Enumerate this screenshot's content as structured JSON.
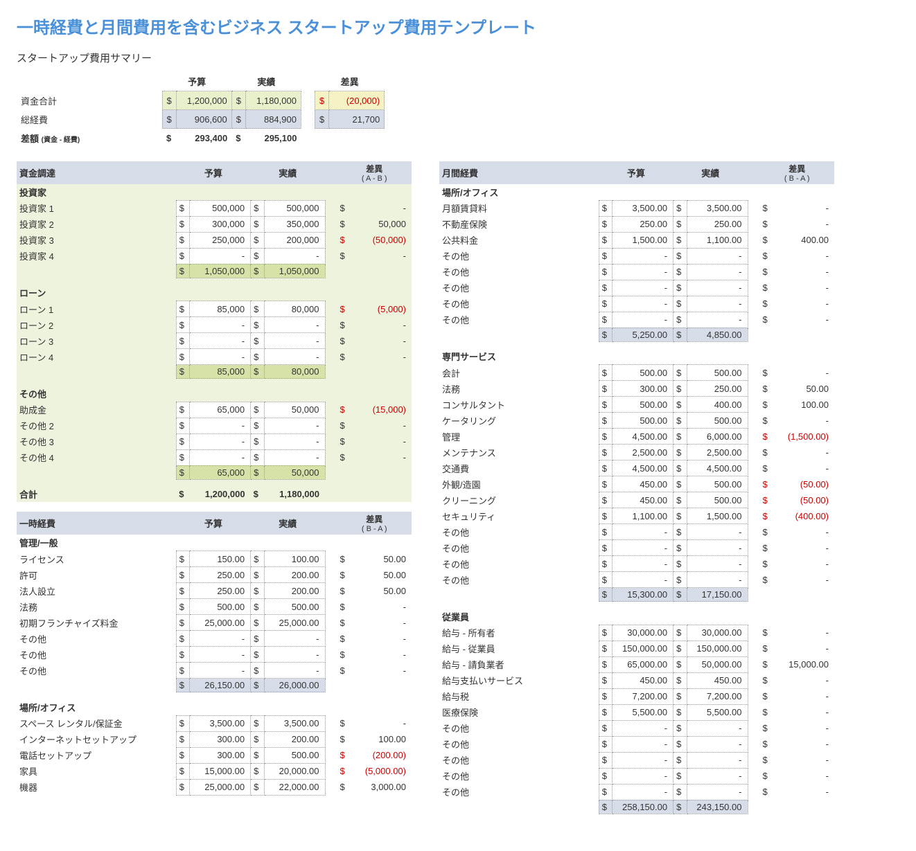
{
  "title": "一時経費と月間費用を含むビジネス スタートアップ費用テンプレート",
  "summary": {
    "title": "スタートアップ費用サマリー",
    "headers": {
      "budget": "予算",
      "actual": "実績",
      "diff": "差異"
    },
    "currency": "$",
    "rows": [
      {
        "label": "資金合計",
        "budget": "1,200,000",
        "actual": "1,180,000",
        "diff": "(20,000)",
        "neg": true,
        "style": "green"
      },
      {
        "label": "総経費",
        "budget": "906,600",
        "actual": "884,900",
        "diff": "21,700",
        "neg": false,
        "style": "blue"
      },
      {
        "label": "差額",
        "note": "(資金 - 経費)",
        "budget": "293,400",
        "actual": "295,100",
        "diff": "",
        "bold": true,
        "style": "none"
      }
    ]
  },
  "funding": {
    "title": "資金調達",
    "headers": {
      "budget": "予算",
      "actual": "実績",
      "diff": "差異",
      "diffsub": "( A - B )"
    },
    "currency": "$",
    "groups": [
      {
        "name": "投資家",
        "rows": [
          {
            "label": "投資家 1",
            "b": "500,000",
            "a": "500,000",
            "d": "-"
          },
          {
            "label": "投資家 2",
            "b": "300,000",
            "a": "350,000",
            "d": "50,000"
          },
          {
            "label": "投資家 3",
            "b": "250,000",
            "a": "200,000",
            "d": "(50,000)",
            "neg": true
          },
          {
            "label": "投資家 4",
            "b": "-",
            "a": "-",
            "d": "-"
          }
        ],
        "subtotal": {
          "b": "1,050,000",
          "a": "1,050,000"
        }
      },
      {
        "name": "ローン",
        "rows": [
          {
            "label": "ローン 1",
            "b": "85,000",
            "a": "80,000",
            "d": "(5,000)",
            "neg": true
          },
          {
            "label": "ローン 2",
            "b": "-",
            "a": "-",
            "d": "-"
          },
          {
            "label": "ローン 3",
            "b": "-",
            "a": "-",
            "d": "-"
          },
          {
            "label": "ローン 4",
            "b": "-",
            "a": "-",
            "d": "-"
          }
        ],
        "subtotal": {
          "b": "85,000",
          "a": "80,000"
        }
      },
      {
        "name": "その他",
        "rows": [
          {
            "label": "助成金",
            "b": "65,000",
            "a": "50,000",
            "d": "(15,000)",
            "neg": true
          },
          {
            "label": "その他 2",
            "b": "-",
            "a": "-",
            "d": "-"
          },
          {
            "label": "その他 3",
            "b": "-",
            "a": "-",
            "d": "-"
          },
          {
            "label": "その他 4",
            "b": "-",
            "a": "-",
            "d": "-"
          }
        ],
        "subtotal": {
          "b": "65,000",
          "a": "50,000"
        }
      }
    ],
    "total": {
      "label": "合計",
      "b": "1,200,000",
      "a": "1,180,000"
    }
  },
  "onetime": {
    "title": "一時経費",
    "headers": {
      "budget": "予算",
      "actual": "実績",
      "diff": "差異",
      "diffsub": "( B - A )"
    },
    "currency": "$",
    "groups": [
      {
        "name": "管理/一般",
        "rows": [
          {
            "label": "ライセンス",
            "b": "150.00",
            "a": "100.00",
            "d": "50.00"
          },
          {
            "label": "許可",
            "b": "250.00",
            "a": "200.00",
            "d": "50.00"
          },
          {
            "label": "法人設立",
            "b": "250.00",
            "a": "200.00",
            "d": "50.00"
          },
          {
            "label": "法務",
            "b": "500.00",
            "a": "500.00",
            "d": "-"
          },
          {
            "label": "初期フランチャイズ料金",
            "b": "25,000.00",
            "a": "25,000.00",
            "d": "-"
          },
          {
            "label": "その他",
            "b": "-",
            "a": "-",
            "d": "-"
          },
          {
            "label": "その他",
            "b": "-",
            "a": "-",
            "d": "-"
          },
          {
            "label": "その他",
            "b": "-",
            "a": "-",
            "d": "-"
          }
        ],
        "subtotal": {
          "b": "26,150.00",
          "a": "26,000.00"
        }
      },
      {
        "name": "場所/オフィス",
        "rows": [
          {
            "label": "スペース レンタル/保証金",
            "b": "3,500.00",
            "a": "3,500.00",
            "d": "-"
          },
          {
            "label": "インターネットセットアップ",
            "b": "300.00",
            "a": "200.00",
            "d": "100.00"
          },
          {
            "label": "電話セットアップ",
            "b": "300.00",
            "a": "500.00",
            "d": "(200.00)",
            "neg": true
          },
          {
            "label": "家具",
            "b": "15,000.00",
            "a": "20,000.00",
            "d": "(5,000.00)",
            "neg": true
          },
          {
            "label": "機器",
            "b": "25,000.00",
            "a": "22,000.00",
            "d": "3,000.00"
          }
        ]
      }
    ]
  },
  "monthly": {
    "title": "月間経費",
    "headers": {
      "budget": "予算",
      "actual": "実績",
      "diff": "差異",
      "diffsub": "( B - A )"
    },
    "currency": "$",
    "groups": [
      {
        "name": "場所/オフィス",
        "rows": [
          {
            "label": "月額賃貸料",
            "b": "3,500.00",
            "a": "3,500.00",
            "d": "-"
          },
          {
            "label": "不動産保険",
            "b": "250.00",
            "a": "250.00",
            "d": "-"
          },
          {
            "label": "公共料金",
            "b": "1,500.00",
            "a": "1,100.00",
            "d": "400.00"
          },
          {
            "label": "その他",
            "b": "-",
            "a": "-",
            "d": "-"
          },
          {
            "label": "その他",
            "b": "-",
            "a": "-",
            "d": "-"
          },
          {
            "label": "その他",
            "b": "-",
            "a": "-",
            "d": "-"
          },
          {
            "label": "その他",
            "b": "-",
            "a": "-",
            "d": "-"
          },
          {
            "label": "その他",
            "b": "-",
            "a": "-",
            "d": "-"
          }
        ],
        "subtotal": {
          "b": "5,250.00",
          "a": "4,850.00"
        }
      },
      {
        "name": "専門サービス",
        "rows": [
          {
            "label": "会計",
            "b": "500.00",
            "a": "500.00",
            "d": "-"
          },
          {
            "label": "法務",
            "b": "300.00",
            "a": "250.00",
            "d": "50.00"
          },
          {
            "label": "コンサルタント",
            "b": "500.00",
            "a": "400.00",
            "d": "100.00"
          },
          {
            "label": "ケータリング",
            "b": "500.00",
            "a": "500.00",
            "d": "-"
          },
          {
            "label": "管理",
            "b": "4,500.00",
            "a": "6,000.00",
            "d": "(1,500.00)",
            "neg": true
          },
          {
            "label": "メンテナンス",
            "b": "2,500.00",
            "a": "2,500.00",
            "d": "-"
          },
          {
            "label": "交通費",
            "b": "4,500.00",
            "a": "4,500.00",
            "d": "-"
          },
          {
            "label": "外観/造園",
            "b": "450.00",
            "a": "500.00",
            "d": "(50.00)",
            "neg": true
          },
          {
            "label": "クリーニング",
            "b": "450.00",
            "a": "500.00",
            "d": "(50.00)",
            "neg": true
          },
          {
            "label": "セキュリティ",
            "b": "1,100.00",
            "a": "1,500.00",
            "d": "(400.00)",
            "neg": true
          },
          {
            "label": "その他",
            "b": "-",
            "a": "-",
            "d": "-"
          },
          {
            "label": "その他",
            "b": "-",
            "a": "-",
            "d": "-"
          },
          {
            "label": "その他",
            "b": "-",
            "a": "-",
            "d": "-"
          },
          {
            "label": "その他",
            "b": "-",
            "a": "-",
            "d": "-"
          }
        ],
        "subtotal": {
          "b": "15,300.00",
          "a": "17,150.00"
        }
      },
      {
        "name": "従業員",
        "rows": [
          {
            "label": "給与 - 所有者",
            "b": "30,000.00",
            "a": "30,000.00",
            "d": "-"
          },
          {
            "label": "給与 - 従業員",
            "b": "150,000.00",
            "a": "150,000.00",
            "d": "-"
          },
          {
            "label": "給与 - 請負業者",
            "b": "65,000.00",
            "a": "50,000.00",
            "d": "15,000.00"
          },
          {
            "label": "給与支払いサービス",
            "b": "450.00",
            "a": "450.00",
            "d": "-"
          },
          {
            "label": "給与税",
            "b": "7,200.00",
            "a": "7,200.00",
            "d": "-"
          },
          {
            "label": "医療保険",
            "b": "5,500.00",
            "a": "5,500.00",
            "d": "-"
          },
          {
            "label": "その他",
            "b": "-",
            "a": "-",
            "d": "-"
          },
          {
            "label": "その他",
            "b": "-",
            "a": "-",
            "d": "-"
          },
          {
            "label": "その他",
            "b": "-",
            "a": "-",
            "d": "-"
          },
          {
            "label": "その他",
            "b": "-",
            "a": "-",
            "d": "-"
          },
          {
            "label": "その他",
            "b": "-",
            "a": "-",
            "d": "-"
          }
        ],
        "subtotal": {
          "b": "258,150.00",
          "a": "243,150.00"
        }
      }
    ]
  },
  "colors": {
    "title": "#4a90d9",
    "green_bg": "#eef3dd",
    "green_sub": "#d5e3a8",
    "blue_header": "#d6dde8",
    "yellow": "#f5f2c4",
    "negative": "#cc0000",
    "border": "#999999"
  }
}
